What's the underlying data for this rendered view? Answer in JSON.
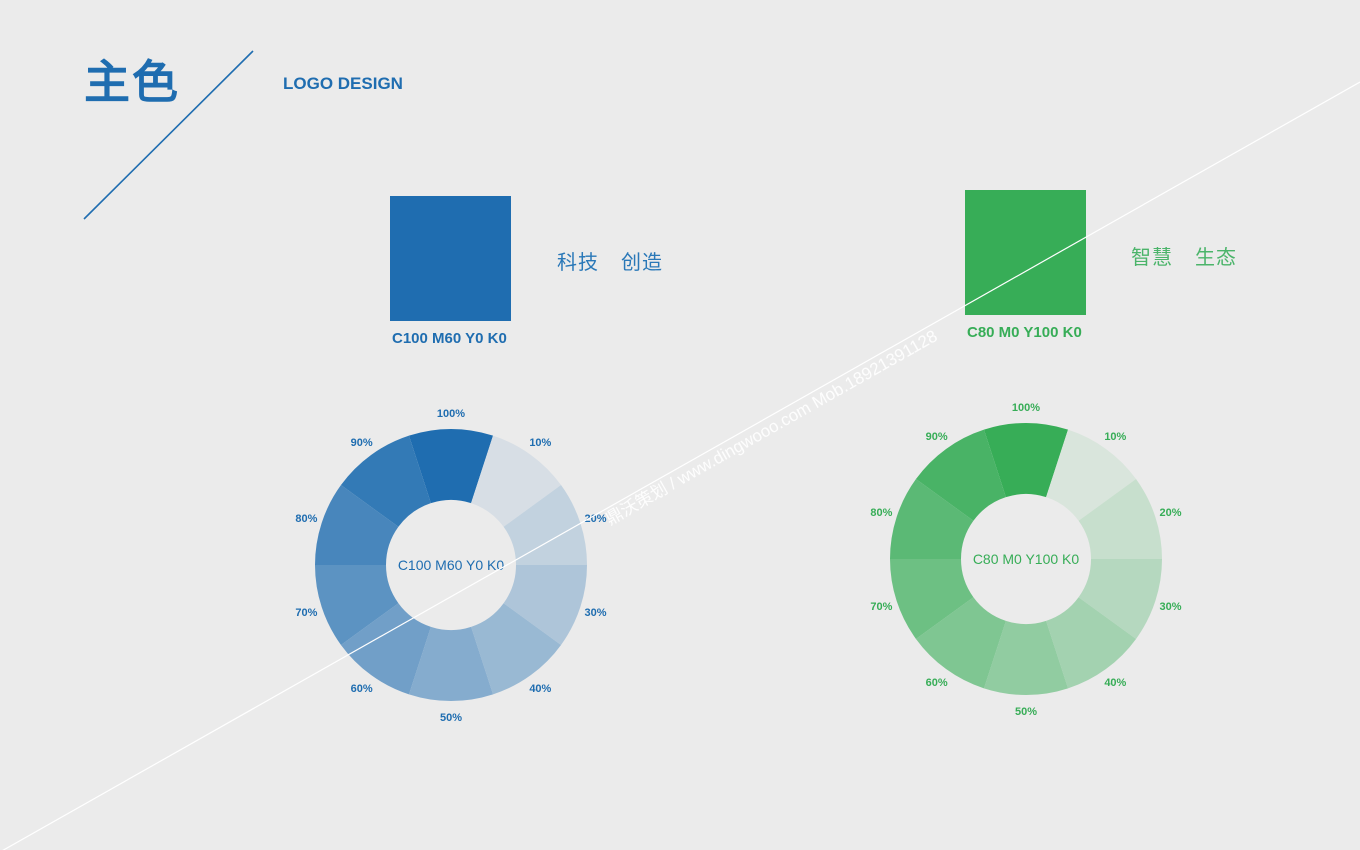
{
  "header": {
    "title": "主色",
    "subtitle": "LOGO DESIGN"
  },
  "colors": [
    {
      "id": "blue",
      "hex": "#1f6db0",
      "code": "C100 M60 Y0 K0",
      "slogan": [
        "科技",
        "创造"
      ],
      "wheel": {
        "center_label": "C100 M60 Y0 K0",
        "tints": [
          "100%",
          "10%",
          "20%",
          "30%",
          "40%",
          "50%",
          "60%",
          "70%",
          "80%",
          "90%"
        ],
        "tint_values": [
          1.0,
          0.1,
          0.2,
          0.3,
          0.4,
          0.5,
          0.6,
          0.7,
          0.8,
          0.9
        ]
      }
    },
    {
      "id": "green",
      "hex": "#37ad57",
      "code": "C80 M0 Y100 K0",
      "slogan": [
        "智慧",
        "生态"
      ],
      "wheel": {
        "center_label": "C80 M0 Y100 K0",
        "tints": [
          "100%",
          "10%",
          "20%",
          "30%",
          "40%",
          "50%",
          "60%",
          "70%",
          "80%",
          "90%"
        ],
        "tint_values": [
          1.0,
          0.1,
          0.2,
          0.3,
          0.4,
          0.5,
          0.6,
          0.7,
          0.8,
          0.9
        ]
      }
    }
  ],
  "watermark": "鼎沃策划 / www.dingwooo.com   Mob.18921391128",
  "background": "#ebebeb"
}
